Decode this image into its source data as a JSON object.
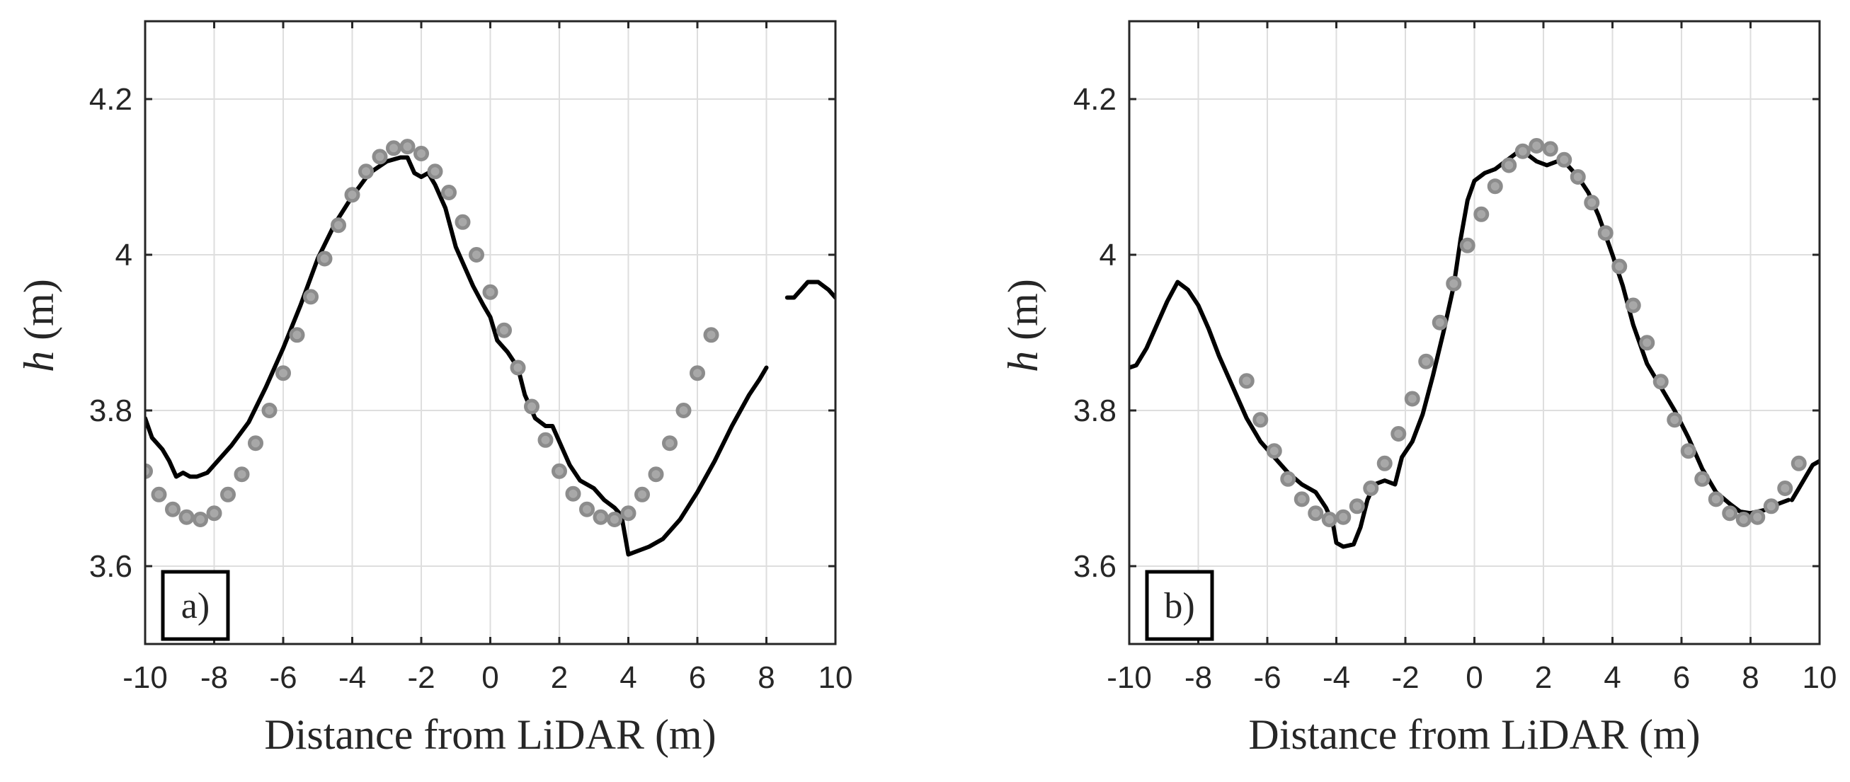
{
  "chart_data": [
    {
      "type": "line",
      "panel": "a)",
      "title": "",
      "xlabel": "Distance from LiDAR (m)",
      "ylabel_italic": "h",
      "ylabel_unit": "(m)",
      "xlim": [
        -10,
        10
      ],
      "ylim": [
        3.5,
        4.3
      ],
      "xticks": [
        -10,
        -8,
        -6,
        -4,
        -2,
        0,
        2,
        4,
        6,
        8,
        10
      ],
      "yticks": [
        3.6,
        3.8,
        4.0,
        4.2
      ],
      "ytick_labels": [
        "3.6",
        "3.8",
        "4",
        "4.2"
      ],
      "grid": true,
      "series": [
        {
          "name": "lidar profile",
          "style": "solid-line",
          "color": "#000000",
          "segments": [
            [
              [
                -10,
                3.79
              ],
              [
                -9.8,
                3.765
              ],
              [
                -9.5,
                3.75
              ],
              [
                -9.3,
                3.735
              ],
              [
                -9.1,
                3.715
              ],
              [
                -8.9,
                3.72
              ],
              [
                -8.7,
                3.715
              ],
              [
                -8.5,
                3.715
              ],
              [
                -8.2,
                3.72
              ],
              [
                -8.0,
                3.73
              ],
              [
                -7.5,
                3.755
              ],
              [
                -7.0,
                3.785
              ],
              [
                -6.5,
                3.83
              ],
              [
                -6.0,
                3.88
              ],
              [
                -5.5,
                3.935
              ],
              [
                -5.0,
                3.995
              ],
              [
                -4.5,
                4.04
              ],
              [
                -4.0,
                4.075
              ],
              [
                -3.5,
                4.105
              ],
              [
                -3.0,
                4.12
              ],
              [
                -2.6,
                4.125
              ],
              [
                -2.4,
                4.125
              ],
              [
                -2.2,
                4.105
              ],
              [
                -2.0,
                4.1
              ],
              [
                -1.8,
                4.105
              ],
              [
                -1.6,
                4.09
              ],
              [
                -1.3,
                4.06
              ],
              [
                -1.0,
                4.01
              ],
              [
                -0.5,
                3.96
              ],
              [
                -0.2,
                3.935
              ],
              [
                0.0,
                3.92
              ],
              [
                0.2,
                3.89
              ],
              [
                0.5,
                3.875
              ],
              [
                0.8,
                3.855
              ],
              [
                1.0,
                3.82
              ],
              [
                1.3,
                3.79
              ],
              [
                1.6,
                3.78
              ],
              [
                1.8,
                3.78
              ],
              [
                2.0,
                3.76
              ],
              [
                2.3,
                3.73
              ],
              [
                2.6,
                3.71
              ],
              [
                3.0,
                3.7
              ],
              [
                3.3,
                3.685
              ],
              [
                3.6,
                3.675
              ],
              [
                3.8,
                3.665
              ],
              [
                4.0,
                3.615
              ],
              [
                4.3,
                3.62
              ],
              [
                4.6,
                3.625
              ],
              [
                5.0,
                3.635
              ],
              [
                5.5,
                3.66
              ],
              [
                6.0,
                3.695
              ],
              [
                6.5,
                3.735
              ],
              [
                7.0,
                3.78
              ],
              [
                7.5,
                3.82
              ],
              [
                7.8,
                3.84
              ],
              [
                8.0,
                3.855
              ]
            ],
            [
              [
                8.6,
                3.945
              ],
              [
                8.8,
                3.945
              ],
              [
                9.0,
                3.955
              ],
              [
                9.2,
                3.965
              ],
              [
                9.5,
                3.965
              ],
              [
                9.8,
                3.955
              ],
              [
                10.0,
                3.945
              ]
            ]
          ]
        },
        {
          "name": "model points",
          "style": "grey-circles",
          "color": "#8c8c8c",
          "points": [
            [
              -10,
              3.722
            ],
            [
              -9.6,
              3.692
            ],
            [
              -9.2,
              3.673
            ],
            [
              -8.8,
              3.663
            ],
            [
              -8.4,
              3.66
            ],
            [
              -8.0,
              3.668
            ],
            [
              -7.6,
              3.692
            ],
            [
              -7.2,
              3.718
            ],
            [
              -6.8,
              3.758
            ],
            [
              -6.4,
              3.8
            ],
            [
              -6.0,
              3.848
            ],
            [
              -5.6,
              3.897
            ],
            [
              -5.2,
              3.946
            ],
            [
              -4.8,
              3.995
            ],
            [
              -4.4,
              4.038
            ],
            [
              -4.0,
              4.077
            ],
            [
              -3.6,
              4.107
            ],
            [
              -3.2,
              4.126
            ],
            [
              -2.8,
              4.137
            ],
            [
              -2.4,
              4.139
            ],
            [
              -2.0,
              4.13
            ],
            [
              -1.6,
              4.107
            ],
            [
              -1.2,
              4.08
            ],
            [
              -0.8,
              4.042
            ],
            [
              -0.4,
              4.0
            ],
            [
              0.0,
              3.952
            ],
            [
              0.4,
              3.903
            ],
            [
              0.8,
              3.855
            ],
            [
              1.2,
              3.805
            ],
            [
              1.6,
              3.762
            ],
            [
              2.0,
              3.722
            ],
            [
              2.4,
              3.693
            ],
            [
              2.8,
              3.673
            ],
            [
              3.2,
              3.663
            ],
            [
              3.6,
              3.66
            ],
            [
              4.0,
              3.668
            ],
            [
              4.4,
              3.692
            ],
            [
              4.8,
              3.718
            ],
            [
              5.2,
              3.758
            ],
            [
              5.6,
              3.8
            ],
            [
              6.0,
              3.848
            ],
            [
              6.4,
              3.897
            ]
          ]
        }
      ]
    },
    {
      "type": "line",
      "panel": "b)",
      "title": "",
      "xlabel": "Distance from LiDAR (m)",
      "ylabel_italic": "h",
      "ylabel_unit": "(m)",
      "xlim": [
        -10,
        10
      ],
      "ylim": [
        3.5,
        4.3
      ],
      "xticks": [
        -10,
        -8,
        -6,
        -4,
        -2,
        0,
        2,
        4,
        6,
        8,
        10
      ],
      "yticks": [
        3.6,
        3.8,
        4.0,
        4.2
      ],
      "ytick_labels": [
        "3.6",
        "3.8",
        "4",
        "4.2"
      ],
      "grid": true,
      "series": [
        {
          "name": "lidar profile",
          "style": "solid-line",
          "color": "#000000",
          "segments": [
            [
              [
                -10,
                3.855
              ],
              [
                -9.8,
                3.858
              ],
              [
                -9.5,
                3.88
              ],
              [
                -9.2,
                3.91
              ],
              [
                -8.9,
                3.94
              ],
              [
                -8.6,
                3.965
              ],
              [
                -8.3,
                3.955
              ],
              [
                -8.0,
                3.935
              ],
              [
                -7.7,
                3.905
              ],
              [
                -7.4,
                3.87
              ],
              [
                -7.0,
                3.83
              ],
              [
                -6.6,
                3.79
              ],
              [
                -6.2,
                3.76
              ],
              [
                -5.8,
                3.74
              ],
              [
                -5.4,
                3.72
              ],
              [
                -5.0,
                3.705
              ],
              [
                -4.6,
                3.695
              ],
              [
                -4.3,
                3.675
              ],
              [
                -4.1,
                3.655
              ],
              [
                -4.0,
                3.63
              ],
              [
                -3.8,
                3.625
              ],
              [
                -3.5,
                3.628
              ],
              [
                -3.3,
                3.65
              ],
              [
                -3.1,
                3.685
              ],
              [
                -2.9,
                3.705
              ],
              [
                -2.6,
                3.71
              ],
              [
                -2.3,
                3.705
              ],
              [
                -2.1,
                3.74
              ],
              [
                -1.8,
                3.76
              ],
              [
                -1.5,
                3.795
              ],
              [
                -1.2,
                3.845
              ],
              [
                -0.9,
                3.9
              ],
              [
                -0.6,
                3.96
              ],
              [
                -0.4,
                4.02
              ],
              [
                -0.2,
                4.07
              ],
              [
                0.0,
                4.095
              ],
              [
                0.3,
                4.105
              ],
              [
                0.6,
                4.11
              ],
              [
                0.9,
                4.12
              ],
              [
                1.2,
                4.13
              ],
              [
                1.5,
                4.13
              ],
              [
                1.8,
                4.12
              ],
              [
                2.1,
                4.115
              ],
              [
                2.4,
                4.12
              ],
              [
                2.7,
                4.115
              ],
              [
                3.0,
                4.1
              ],
              [
                3.3,
                4.08
              ],
              [
                3.6,
                4.05
              ],
              [
                4.0,
                4.0
              ],
              [
                4.3,
                3.96
              ],
              [
                4.6,
                3.91
              ],
              [
                5.0,
                3.86
              ],
              [
                5.4,
                3.83
              ],
              [
                5.8,
                3.8
              ],
              [
                6.2,
                3.765
              ],
              [
                6.6,
                3.725
              ],
              [
                7.0,
                3.695
              ],
              [
                7.4,
                3.68
              ],
              [
                7.7,
                3.67
              ],
              [
                8.0,
                3.668
              ],
              [
                8.4,
                3.672
              ],
              [
                8.8,
                3.68
              ],
              [
                9.1,
                3.685
              ]
            ],
            [
              [
                9.2,
                3.685
              ],
              [
                9.4,
                3.7
              ],
              [
                9.6,
                3.715
              ],
              [
                9.8,
                3.73
              ],
              [
                10.0,
                3.735
              ]
            ]
          ]
        },
        {
          "name": "model points",
          "style": "grey-circles",
          "color": "#8c8c8c",
          "points": [
            [
              -6.6,
              3.838
            ],
            [
              -6.2,
              3.788
            ],
            [
              -5.8,
              3.748
            ],
            [
              -5.4,
              3.712
            ],
            [
              -5.0,
              3.686
            ],
            [
              -4.6,
              3.668
            ],
            [
              -4.2,
              3.66
            ],
            [
              -3.8,
              3.663
            ],
            [
              -3.4,
              3.677
            ],
            [
              -3.0,
              3.7
            ],
            [
              -2.6,
              3.732
            ],
            [
              -2.2,
              3.77
            ],
            [
              -1.8,
              3.815
            ],
            [
              -1.4,
              3.863
            ],
            [
              -1.0,
              3.913
            ],
            [
              -0.6,
              3.963
            ],
            [
              -0.2,
              4.012
            ],
            [
              0.2,
              4.052
            ],
            [
              0.6,
              4.088
            ],
            [
              1.0,
              4.115
            ],
            [
              1.4,
              4.133
            ],
            [
              1.8,
              4.14
            ],
            [
              2.2,
              4.136
            ],
            [
              2.6,
              4.122
            ],
            [
              3.0,
              4.1
            ],
            [
              3.4,
              4.067
            ],
            [
              3.8,
              4.028
            ],
            [
              4.2,
              3.985
            ],
            [
              4.6,
              3.935
            ],
            [
              5.0,
              3.887
            ],
            [
              5.4,
              3.837
            ],
            [
              5.8,
              3.788
            ],
            [
              6.2,
              3.748
            ],
            [
              6.6,
              3.712
            ],
            [
              7.0,
              3.686
            ],
            [
              7.4,
              3.668
            ],
            [
              7.8,
              3.66
            ],
            [
              8.2,
              3.663
            ],
            [
              8.6,
              3.677
            ],
            [
              9.0,
              3.7
            ],
            [
              9.4,
              3.732
            ]
          ]
        }
      ]
    }
  ]
}
